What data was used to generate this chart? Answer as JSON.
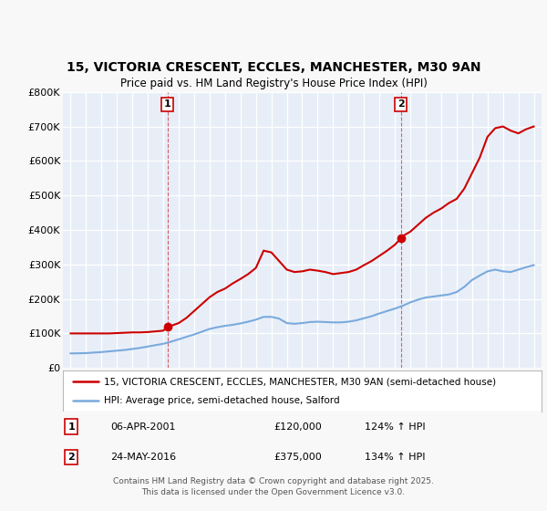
{
  "title_line1": "15, VICTORIA CRESCENT, ECCLES, MANCHESTER, M30 9AN",
  "title_line2": "Price paid vs. HM Land Registry's House Price Index (HPI)",
  "background_color": "#f8f8f8",
  "plot_background": "#e8eef8",
  "grid_color": "#ffffff",
  "red_line_color": "#cc0000",
  "blue_line_color": "#7aaadd",
  "marker1_x": 2001.27,
  "marker1_y": 120000,
  "marker2_x": 2016.38,
  "marker2_y": 375000,
  "annotation1": {
    "label": "1",
    "date": "06-APR-2001",
    "price": "£120,000",
    "hpi": "124% ↑ HPI"
  },
  "annotation2": {
    "label": "2",
    "date": "24-MAY-2016",
    "price": "£375,000",
    "hpi": "134% ↑ HPI"
  },
  "legend_line1": "15, VICTORIA CRESCENT, ECCLES, MANCHESTER, M30 9AN (semi-detached house)",
  "legend_line2": "HPI: Average price, semi-detached house, Salford",
  "footer": "Contains HM Land Registry data © Crown copyright and database right 2025.\nThis data is licensed under the Open Government Licence v3.0.",
  "hpi_x": [
    1995.0,
    1995.5,
    1996.0,
    1996.5,
    1997.0,
    1997.5,
    1998.0,
    1998.5,
    1999.0,
    1999.5,
    2000.0,
    2000.5,
    2001.0,
    2001.5,
    2002.0,
    2002.5,
    2003.0,
    2003.5,
    2004.0,
    2004.5,
    2005.0,
    2005.5,
    2006.0,
    2006.5,
    2007.0,
    2007.5,
    2008.0,
    2008.5,
    2009.0,
    2009.5,
    2010.0,
    2010.5,
    2011.0,
    2011.5,
    2012.0,
    2012.5,
    2013.0,
    2013.5,
    2014.0,
    2014.5,
    2015.0,
    2015.5,
    2016.0,
    2016.5,
    2017.0,
    2017.5,
    2018.0,
    2018.5,
    2019.0,
    2019.5,
    2020.0,
    2020.5,
    2021.0,
    2021.5,
    2022.0,
    2022.5,
    2023.0,
    2023.5,
    2024.0,
    2024.5,
    2025.0
  ],
  "hpi_y": [
    42000,
    42500,
    43000,
    44500,
    46000,
    48000,
    50000,
    52000,
    55000,
    58000,
    62000,
    66000,
    70000,
    76000,
    83000,
    90000,
    97000,
    105000,
    113000,
    118000,
    122000,
    125000,
    129000,
    134000,
    140000,
    148000,
    148000,
    143000,
    130000,
    128000,
    130000,
    133000,
    134000,
    133000,
    132000,
    132000,
    134000,
    138000,
    144000,
    150000,
    158000,
    165000,
    172000,
    180000,
    190000,
    198000,
    204000,
    207000,
    210000,
    213000,
    220000,
    235000,
    255000,
    268000,
    280000,
    285000,
    280000,
    278000,
    285000,
    292000,
    298000
  ],
  "red_x": [
    1995.0,
    1995.5,
    1996.0,
    1996.5,
    1997.0,
    1997.5,
    1998.0,
    1998.5,
    1999.0,
    1999.5,
    2000.0,
    2000.5,
    2001.0,
    2001.27,
    2001.5,
    2002.0,
    2002.5,
    2003.0,
    2003.5,
    2004.0,
    2004.5,
    2005.0,
    2005.5,
    2006.0,
    2006.5,
    2007.0,
    2007.5,
    2008.0,
    2008.5,
    2009.0,
    2009.5,
    2010.0,
    2010.5,
    2011.0,
    2011.5,
    2012.0,
    2012.5,
    2013.0,
    2013.5,
    2014.0,
    2014.5,
    2015.0,
    2015.5,
    2016.0,
    2016.38,
    2016.5,
    2017.0,
    2017.5,
    2018.0,
    2018.5,
    2019.0,
    2019.5,
    2020.0,
    2020.5,
    2021.0,
    2021.5,
    2022.0,
    2022.5,
    2023.0,
    2023.5,
    2024.0,
    2024.5,
    2025.0
  ],
  "red_y": [
    100000,
    100000,
    100000,
    100000,
    100000,
    100000,
    101000,
    102000,
    103000,
    103000,
    104000,
    106000,
    108000,
    120000,
    122000,
    130000,
    145000,
    165000,
    185000,
    205000,
    220000,
    230000,
    245000,
    258000,
    272000,
    290000,
    340000,
    335000,
    310000,
    285000,
    278000,
    280000,
    285000,
    282000,
    278000,
    272000,
    275000,
    278000,
    285000,
    298000,
    310000,
    325000,
    340000,
    357000,
    375000,
    382000,
    395000,
    415000,
    435000,
    450000,
    462000,
    478000,
    490000,
    520000,
    565000,
    610000,
    670000,
    695000,
    700000,
    688000,
    680000,
    692000,
    700000
  ],
  "ylim": [
    0,
    800000
  ],
  "xlim": [
    1994.5,
    2025.5
  ],
  "yticks": [
    0,
    100000,
    200000,
    300000,
    400000,
    500000,
    600000,
    700000,
    800000
  ],
  "ytick_labels": [
    "£0",
    "£100K",
    "£200K",
    "£300K",
    "£400K",
    "£500K",
    "£600K",
    "£700K",
    "£800K"
  ],
  "xticks": [
    1995,
    1996,
    1997,
    1998,
    1999,
    2000,
    2001,
    2002,
    2003,
    2004,
    2005,
    2006,
    2007,
    2008,
    2009,
    2010,
    2011,
    2012,
    2013,
    2014,
    2015,
    2016,
    2017,
    2018,
    2019,
    2020,
    2021,
    2022,
    2023,
    2024,
    2025
  ]
}
